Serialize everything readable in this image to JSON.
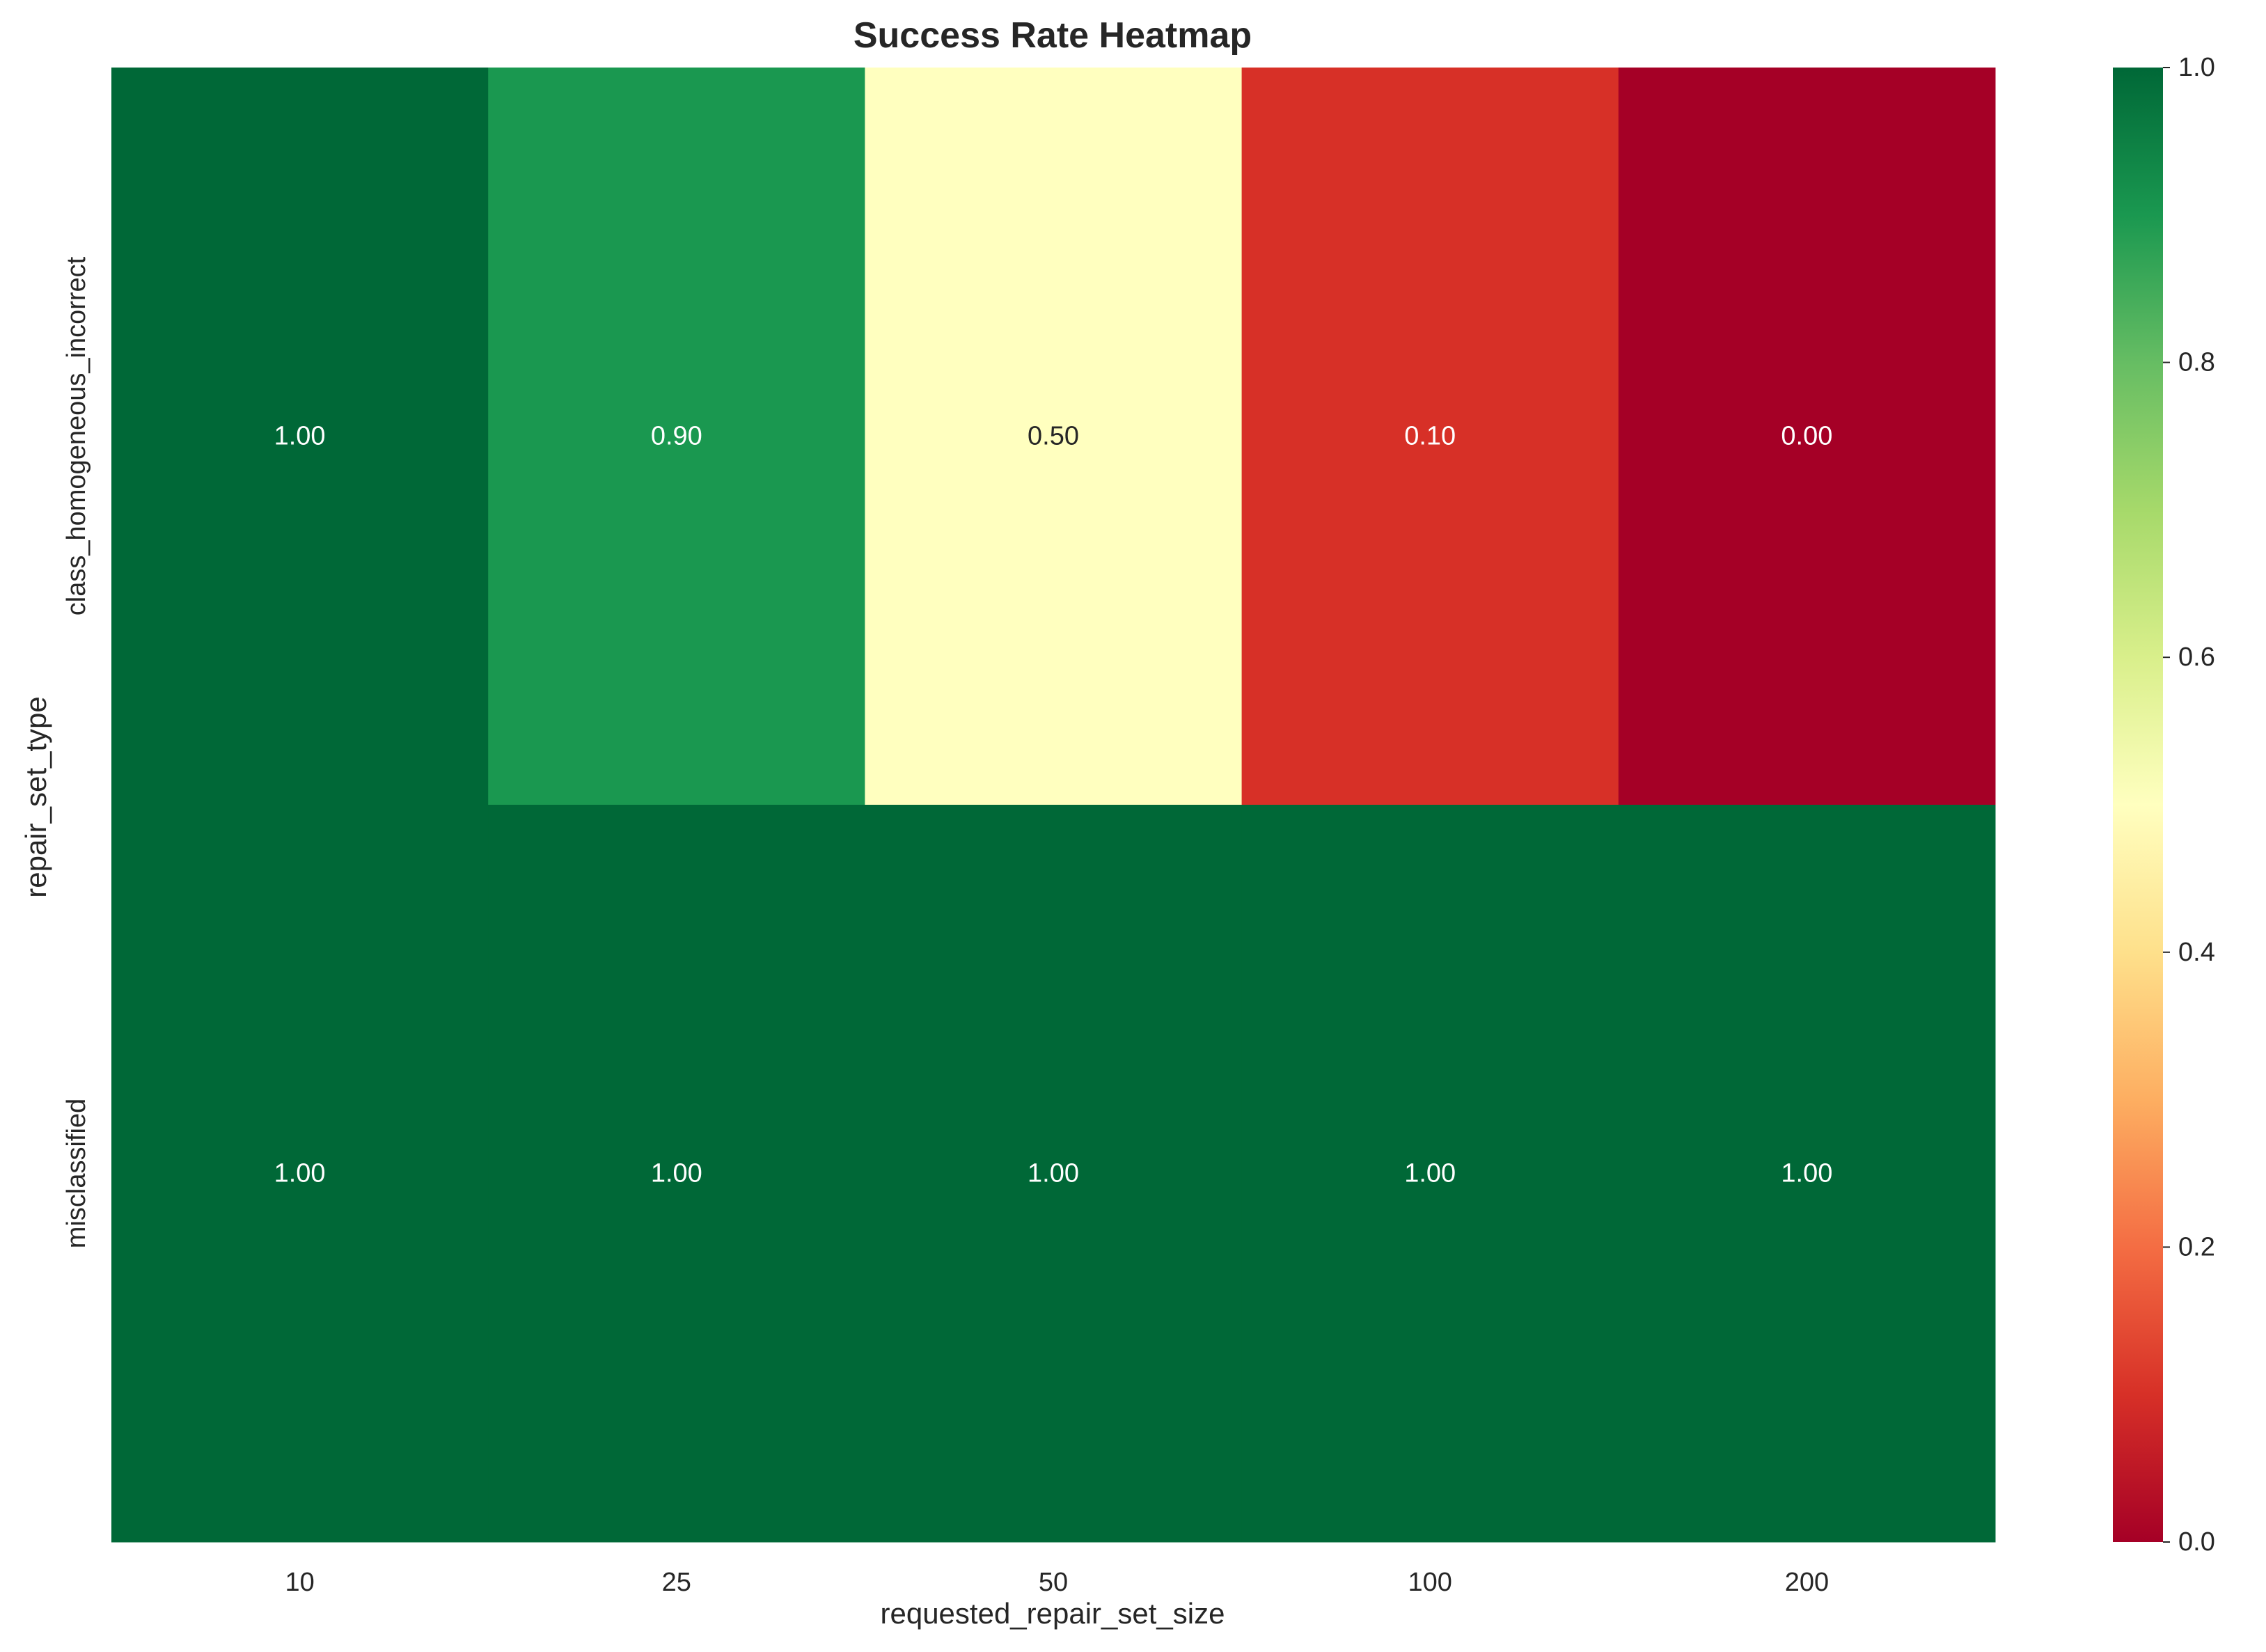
{
  "chart_data": {
    "type": "heatmap",
    "title": "Success Rate Heatmap",
    "xlabel": "requested_repair_set_size",
    "ylabel": "repair_set_type",
    "x_categories": [
      "10",
      "25",
      "50",
      "100",
      "200"
    ],
    "y_categories": [
      "class_homogeneous_incorrect",
      "misclassified"
    ],
    "values": [
      [
        1.0,
        0.9,
        0.5,
        0.1,
        0.0
      ],
      [
        1.0,
        1.0,
        1.0,
        1.0,
        1.0
      ]
    ],
    "value_labels": [
      [
        "1.00",
        "0.90",
        "0.50",
        "0.10",
        "0.00"
      ],
      [
        "1.00",
        "1.00",
        "1.00",
        "1.00",
        "1.00"
      ]
    ],
    "colormap": "RdYlGn",
    "vmin": 0.0,
    "vmax": 1.0,
    "colorbar_ticks": [
      "0.0",
      "0.2",
      "0.4",
      "0.6",
      "0.8",
      "1.0"
    ],
    "grid": false
  }
}
